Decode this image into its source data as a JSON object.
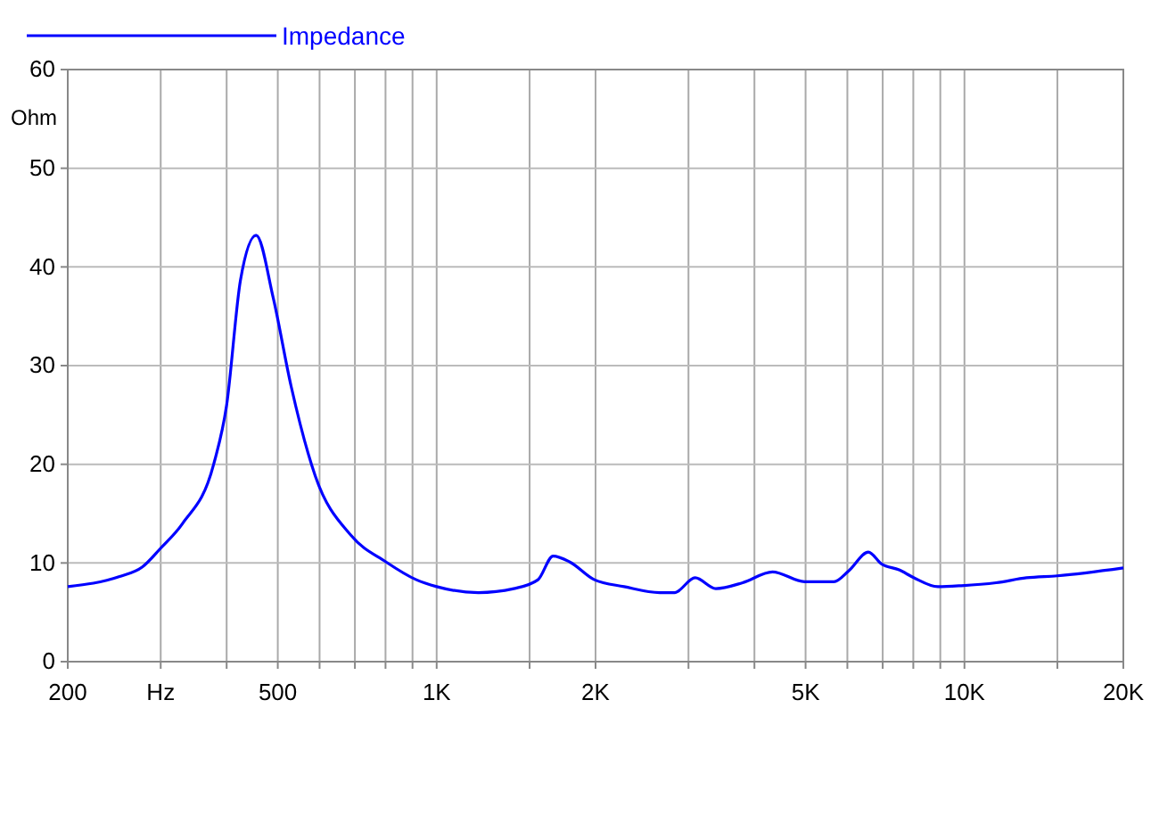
{
  "chart_data": {
    "type": "line",
    "ylabel": "Ohm",
    "log": "x",
    "grid": true,
    "legend": "top left",
    "line_style": "solid",
    "marker": "none",
    "xlim": [
      200,
      20000
    ],
    "ylim": [
      0,
      60
    ],
    "xticks": [
      200,
      {
        "value": 300,
        "label": "Hz"
      },
      {
        "value": 400,
        "label": null
      },
      500,
      {
        "value": 600,
        "label": null
      },
      {
        "value": 700,
        "label": null
      },
      {
        "value": 800,
        "label": null
      },
      {
        "value": 900,
        "label": null
      },
      {
        "value": 1000,
        "label": "1K"
      },
      {
        "value": 1500,
        "label": null
      },
      {
        "value": 2000,
        "label": "2K"
      },
      {
        "value": 3000,
        "label": null
      },
      {
        "value": 4000,
        "label": null
      },
      {
        "value": 5000,
        "label": "5K"
      },
      {
        "value": 6000,
        "label": null
      },
      {
        "value": 7000,
        "label": null
      },
      {
        "value": 8000,
        "label": null
      },
      {
        "value": 9000,
        "label": null
      },
      {
        "value": 10000,
        "label": "10K"
      },
      {
        "value": 15000,
        "label": null
      },
      {
        "value": 20000,
        "label": "20K"
      }
    ],
    "yticks": [
      0,
      10,
      20,
      30,
      40,
      50,
      60
    ],
    "x": [
      200,
      250,
      277,
      300,
      330,
      378,
      400,
      425,
      455,
      490,
      530,
      589,
      688,
      802,
      915,
      1000,
      1200,
      1400,
      1556,
      1662,
      1788,
      1990,
      2266,
      2647,
      2822,
      3088,
      3380,
      3800,
      4328,
      4978,
      5658,
      6034,
      6576,
      6963,
      7518,
      8025,
      8903,
      9860,
      11480,
      13110,
      14990,
      20000
    ],
    "series": [
      {
        "name": "Impedance",
        "color": "#0000ff",
        "values": [
          7.6,
          8.6,
          9.6,
          11.5,
          14,
          20,
          26,
          38.7,
          43.2,
          36.9,
          27.9,
          18.8,
          12.8,
          10.1,
          8.3,
          7.6,
          7.0,
          7.4,
          8.3,
          10.7,
          10.1,
          8.3,
          7.6,
          7.0,
          7.0,
          8.5,
          7.4,
          8.0,
          9.1,
          8.1,
          8.1,
          9.2,
          11.1,
          9.9,
          9.3,
          8.5,
          7.6,
          7.7,
          8.0,
          8.5,
          8.7,
          9.5
        ]
      }
    ]
  }
}
